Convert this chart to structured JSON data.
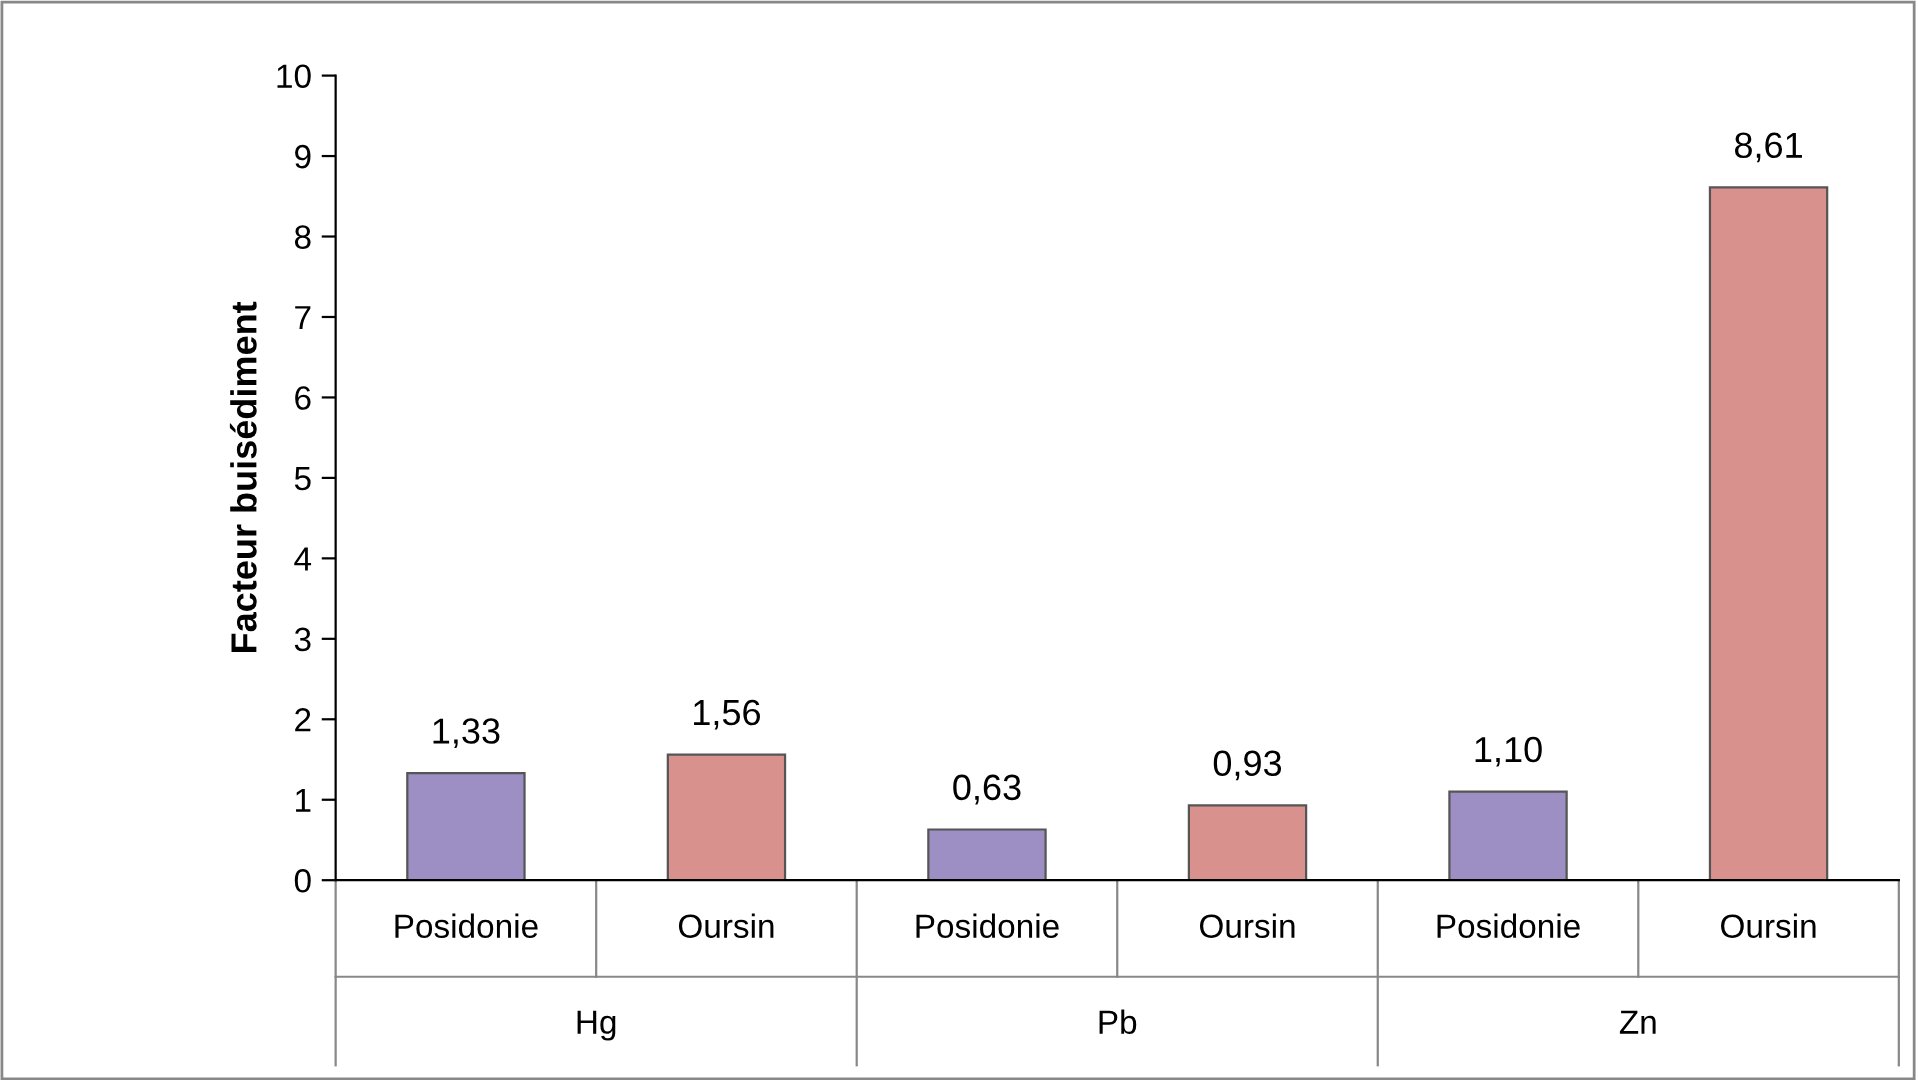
{
  "chart_data": {
    "type": "bar",
    "ylabel": "Facteur buisédiment",
    "categories": [
      "Posidonie",
      "Oursin",
      "Posidonie",
      "Oursin",
      "Posidonie",
      "Oursin"
    ],
    "values": [
      1.33,
      1.56,
      0.63,
      0.93,
      1.1,
      8.61
    ],
    "value_labels": [
      "1,33",
      "1,56",
      "0,63",
      "0,93",
      "1,10",
      "8,61"
    ],
    "colors": [
      "#9d8ec4",
      "#d9918e",
      "#9d8ec4",
      "#d9918e",
      "#9d8ec4",
      "#d9918e"
    ],
    "annotations": [
      "Hg",
      "Pb",
      "Zn"
    ],
    "ylim": [
      0,
      10
    ],
    "yticks": [
      0,
      1,
      2,
      3,
      4,
      5,
      6,
      7,
      8,
      9,
      10
    ],
    "grid": false,
    "legend": false
  }
}
